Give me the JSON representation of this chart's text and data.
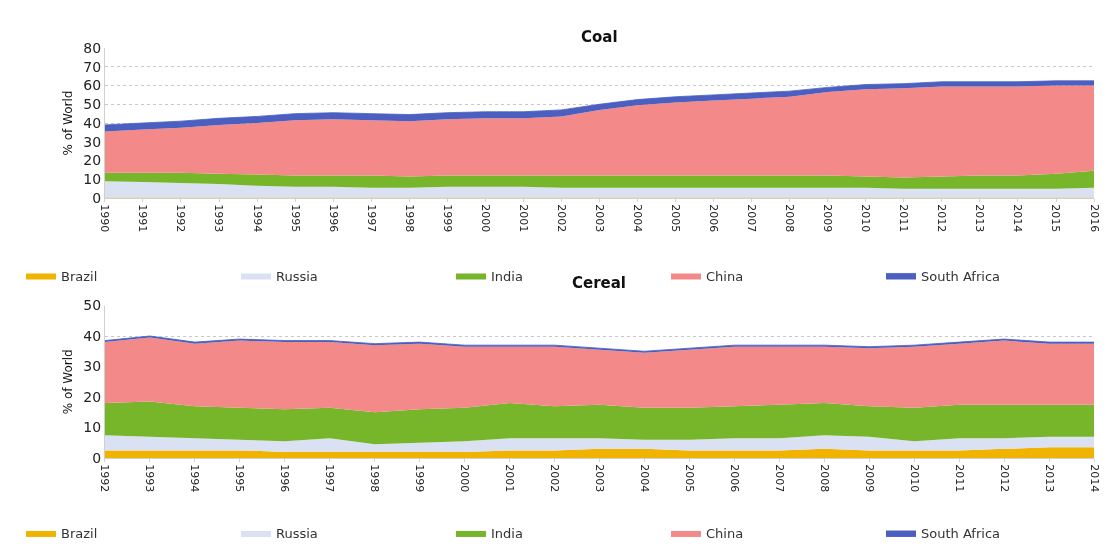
{
  "chart_data": [
    {
      "type": "area",
      "title": "Coal",
      "ylabel": "% of World",
      "stacked": true,
      "grid": "y",
      "legend": "bottom",
      "categories": [
        "1990",
        "1991",
        "1992",
        "1993",
        "1994",
        "1995",
        "1996",
        "1997",
        "1998",
        "1999",
        "2000",
        "2001",
        "2002",
        "2003",
        "2004",
        "2005",
        "2006",
        "2007",
        "2008",
        "2009",
        "2010",
        "2011",
        "2012",
        "2013",
        "2014",
        "2015",
        "2016"
      ],
      "ylim": [
        0,
        80
      ],
      "yticks": [
        0,
        10,
        20,
        30,
        40,
        50,
        60,
        70,
        80
      ],
      "series": [
        {
          "name": "Brazil",
          "color": "#f0b400",
          "values": [
            0.3,
            0.3,
            0.3,
            0.3,
            0.3,
            0.3,
            0.3,
            0.3,
            0.3,
            0.3,
            0.3,
            0.3,
            0.3,
            0.3,
            0.3,
            0.3,
            0.3,
            0.3,
            0.3,
            0.3,
            0.3,
            0.3,
            0.3,
            0.3,
            0.3,
            0.3,
            0.3
          ]
        },
        {
          "name": "Russia",
          "color": "#d9e1f2",
          "values": [
            8.7,
            8.2,
            7.7,
            7.2,
            6.2,
            5.7,
            5.7,
            5.2,
            5.2,
            5.7,
            5.7,
            5.7,
            5.2,
            5.2,
            5.2,
            5.2,
            5.2,
            5.2,
            5.2,
            5.2,
            5.2,
            4.7,
            4.7,
            4.7,
            4.7,
            4.7,
            5.2
          ]
        },
        {
          "name": "India",
          "color": "#77b52a",
          "values": [
            4.5,
            5,
            5.5,
            5.5,
            6,
            6,
            6,
            6.5,
            6,
            6,
            6,
            6,
            6.5,
            6.5,
            6.5,
            6.5,
            6.5,
            6.5,
            6.5,
            6.5,
            6,
            6,
            6.5,
            7,
            7,
            8,
            9
          ]
        },
        {
          "name": "China",
          "color": "#f4898a",
          "values": [
            22,
            23,
            24,
            26,
            27.5,
            29.5,
            30,
            29.5,
            29.5,
            30,
            30.5,
            30.5,
            31.5,
            35,
            37.5,
            39,
            40,
            41,
            42,
            44.5,
            46.5,
            47.5,
            48,
            47.5,
            47.5,
            47,
            45.5
          ]
        },
        {
          "name": "South Africa",
          "color": "#4a5fc0",
          "values": [
            3.5,
            3.5,
            3.5,
            3.5,
            3.5,
            3.5,
            3.5,
            3.5,
            3.5,
            3.5,
            3.5,
            3.5,
            3.5,
            3,
            3,
            3,
            3,
            3,
            3,
            2.5,
            2.5,
            2.5,
            2.5,
            2.5,
            2.5,
            2.5,
            2.5
          ]
        }
      ]
    },
    {
      "type": "area",
      "title": "Cereal",
      "ylabel": "% of World",
      "stacked": true,
      "grid": "y",
      "legend": "bottom",
      "categories": [
        "1992",
        "1993",
        "1994",
        "1995",
        "1996",
        "1997",
        "1998",
        "1999",
        "2000",
        "2001",
        "2002",
        "2003",
        "2004",
        "2005",
        "2006",
        "2007",
        "2008",
        "2009",
        "2010",
        "2011",
        "2012",
        "2013",
        "2014"
      ],
      "ylim": [
        0,
        50
      ],
      "yticks": [
        0,
        10,
        20,
        30,
        40,
        50
      ],
      "series": [
        {
          "name": "Brazil",
          "color": "#f0b400",
          "values": [
            2.5,
            2.5,
            2.5,
            2.5,
            2,
            2,
            2,
            2,
            2,
            2.5,
            2.5,
            3,
            3,
            2.5,
            2.5,
            2.5,
            3,
            2.5,
            2.5,
            2.5,
            3,
            3.5,
            3.5
          ]
        },
        {
          "name": "Russia",
          "color": "#d9e1f2",
          "values": [
            5,
            4.5,
            4,
            3.5,
            3.5,
            4.5,
            2.5,
            3,
            3.5,
            4,
            4,
            3.5,
            3,
            3.5,
            4,
            4,
            4.5,
            4.5,
            3,
            4,
            3.5,
            3.5,
            3.5
          ]
        },
        {
          "name": "India",
          "color": "#77b52a",
          "values": [
            10.5,
            11.5,
            10.5,
            10.5,
            10.5,
            10,
            10.5,
            11,
            11,
            11.5,
            10.5,
            11,
            10.5,
            10.5,
            10.5,
            11,
            10.5,
            10,
            11,
            11,
            11,
            10.5,
            10.5
          ]
        },
        {
          "name": "China",
          "color": "#f4898a",
          "values": [
            20,
            21,
            20.5,
            22,
            22,
            21.5,
            22,
            21.5,
            20,
            18.5,
            19.5,
            18,
            18,
            19,
            19.5,
            19,
            18.5,
            19,
            20,
            20,
            21,
            20,
            20
          ]
        },
        {
          "name": "South Africa",
          "color": "#4a5fc0",
          "values": [
            0.5,
            0.5,
            0.5,
            0.5,
            0.5,
            0.5,
            0.5,
            0.5,
            0.5,
            0.5,
            0.5,
            0.5,
            0.5,
            0.5,
            0.5,
            0.5,
            0.5,
            0.5,
            0.5,
            0.5,
            0.5,
            0.5,
            0.5
          ]
        }
      ]
    }
  ]
}
